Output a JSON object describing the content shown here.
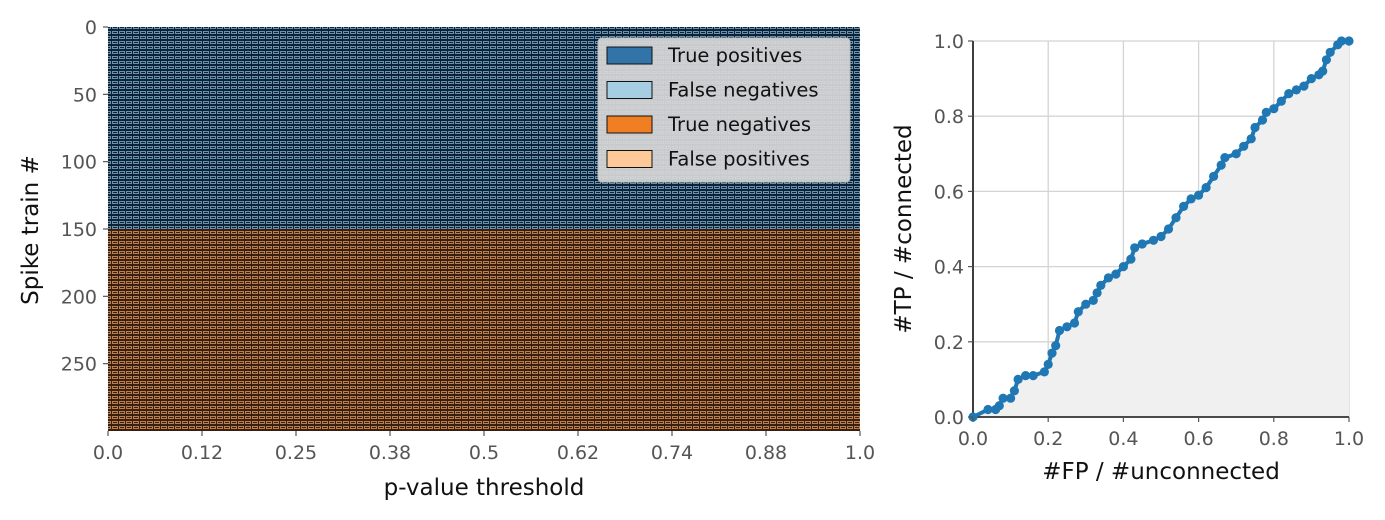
{
  "chart_data": [
    {
      "type": "heatmap",
      "xlabel": "p-value threshold",
      "ylabel": "Spike train #",
      "xticks": [
        "0.0",
        "0.12",
        "0.25",
        "0.38",
        "0.5",
        "0.62",
        "0.74",
        "0.88",
        "1.0"
      ],
      "yticks": [
        0,
        50,
        100,
        150,
        200,
        250
      ],
      "ylim": [
        300,
        0
      ],
      "xlim": [
        0.0,
        1.0
      ],
      "n_spike_trains": 300,
      "n_connected": 150,
      "n_unconnected": 150,
      "legend": {
        "position": "upper right",
        "entries": [
          {
            "label": "True positives",
            "color": "#3274a8"
          },
          {
            "label": "False negatives",
            "color": "#a6cee3"
          },
          {
            "label": "True negatives",
            "color": "#f07f23"
          },
          {
            "label": "False positives",
            "color": "#fdc998"
          }
        ]
      },
      "cell_edge_colors": {
        "connected_region": "#9ec9e2",
        "unconnected_region": "#f8c18e"
      },
      "region_fill_colors": {
        "connected_region": "#0d2137",
        "unconnected_region": "#3a1f10"
      }
    },
    {
      "type": "line",
      "xlabel": "#FP / #unconnected",
      "ylabel": "#TP / #connected",
      "xlim": [
        0.0,
        1.0
      ],
      "ylim": [
        0.0,
        1.0
      ],
      "xticks": [
        "0.0",
        "0.2",
        "0.4",
        "0.6",
        "0.8",
        "1.0"
      ],
      "yticks": [
        "0.0",
        "0.2",
        "0.4",
        "0.6",
        "0.8",
        "1.0"
      ],
      "grid": true,
      "area_fill": true,
      "series_color": "#1f77b4",
      "points": [
        [
          0.0,
          0.0
        ],
        [
          0.04,
          0.02
        ],
        [
          0.06,
          0.02
        ],
        [
          0.07,
          0.03
        ],
        [
          0.08,
          0.05
        ],
        [
          0.1,
          0.05
        ],
        [
          0.11,
          0.07
        ],
        [
          0.12,
          0.1
        ],
        [
          0.14,
          0.11
        ],
        [
          0.16,
          0.11
        ],
        [
          0.19,
          0.12
        ],
        [
          0.2,
          0.14
        ],
        [
          0.21,
          0.17
        ],
        [
          0.22,
          0.19
        ],
        [
          0.23,
          0.23
        ],
        [
          0.25,
          0.24
        ],
        [
          0.27,
          0.25
        ],
        [
          0.28,
          0.28
        ],
        [
          0.3,
          0.3
        ],
        [
          0.32,
          0.31
        ],
        [
          0.33,
          0.33
        ],
        [
          0.34,
          0.35
        ],
        [
          0.36,
          0.37
        ],
        [
          0.38,
          0.38
        ],
        [
          0.4,
          0.4
        ],
        [
          0.42,
          0.42
        ],
        [
          0.43,
          0.45
        ],
        [
          0.45,
          0.46
        ],
        [
          0.48,
          0.47
        ],
        [
          0.5,
          0.48
        ],
        [
          0.52,
          0.5
        ],
        [
          0.54,
          0.53
        ],
        [
          0.56,
          0.56
        ],
        [
          0.58,
          0.58
        ],
        [
          0.6,
          0.59
        ],
        [
          0.62,
          0.61
        ],
        [
          0.64,
          0.64
        ],
        [
          0.66,
          0.67
        ],
        [
          0.67,
          0.69
        ],
        [
          0.7,
          0.7
        ],
        [
          0.72,
          0.72
        ],
        [
          0.74,
          0.74
        ],
        [
          0.75,
          0.77
        ],
        [
          0.77,
          0.79
        ],
        [
          0.78,
          0.81
        ],
        [
          0.8,
          0.82
        ],
        [
          0.82,
          0.84
        ],
        [
          0.84,
          0.86
        ],
        [
          0.86,
          0.87
        ],
        [
          0.88,
          0.88
        ],
        [
          0.9,
          0.9
        ],
        [
          0.92,
          0.91
        ],
        [
          0.93,
          0.92
        ],
        [
          0.94,
          0.95
        ],
        [
          0.95,
          0.97
        ],
        [
          0.97,
          0.99
        ],
        [
          0.98,
          1.0
        ],
        [
          1.0,
          1.0
        ]
      ]
    }
  ]
}
